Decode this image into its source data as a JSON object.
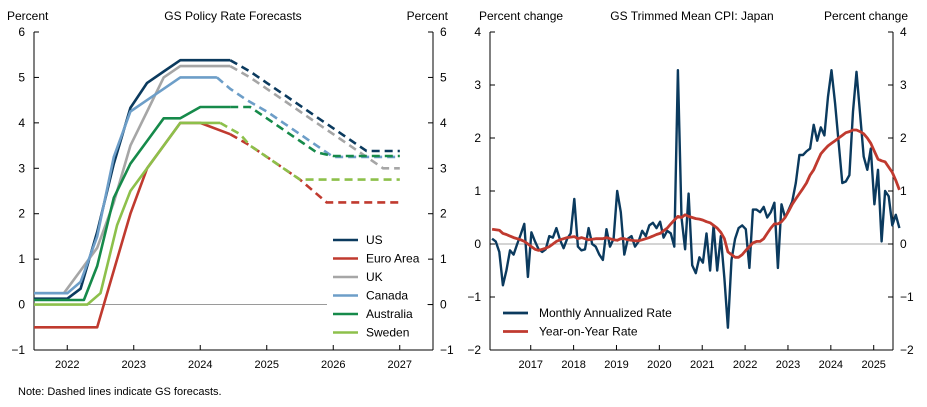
{
  "note": "Note: Dashed lines indicate GS forecasts.",
  "colors": {
    "US": "#0b3a5e",
    "Euro Area": "#c03a2f",
    "UK": "#a6a6a6",
    "Canada": "#6d9ec8",
    "Australia": "#168a4a",
    "Sweden": "#8dc04b",
    "zero_line": "#8c8c8c"
  },
  "chart_data": [
    {
      "type": "line",
      "title": "GS Policy Rate Forecasts",
      "ylabel_left": "Percent",
      "ylabel_right": "Percent",
      "xlabel": "",
      "xlim": [
        2021.5,
        2027.5
      ],
      "ylim": [
        -1,
        6
      ],
      "xticks": [
        2022,
        2023,
        2024,
        2025,
        2026,
        2027
      ],
      "xtick_labels": [
        "2022",
        "2023",
        "2024",
        "2025",
        "2026",
        "2027"
      ],
      "yticks": [
        -1,
        0,
        1,
        2,
        3,
        4,
        5,
        6
      ],
      "ytick_labels": [
        "−1",
        "0",
        "1",
        "2",
        "3",
        "4",
        "5",
        "6"
      ],
      "legend_position": "bottom-right",
      "series": [
        {
          "name": "US",
          "color_key": "US",
          "forecast_start": 2024.45,
          "x": [
            2021.5,
            2022.0,
            2022.2,
            2022.45,
            2022.7,
            2022.95,
            2023.2,
            2023.45,
            2023.7,
            2024.0,
            2024.45,
            2024.75,
            2025.0,
            2025.25,
            2025.5,
            2025.75,
            2026.0,
            2026.25,
            2026.5,
            2027.0
          ],
          "y": [
            0.13,
            0.13,
            0.35,
            1.6,
            3.1,
            4.33,
            4.88,
            5.13,
            5.38,
            5.38,
            5.38,
            5.13,
            4.88,
            4.63,
            4.38,
            4.13,
            3.88,
            3.63,
            3.38,
            3.38
          ]
        },
        {
          "name": "Euro Area",
          "color_key": "Euro Area",
          "forecast_start": 2024.45,
          "x": [
            2021.5,
            2022.45,
            2022.7,
            2022.95,
            2023.2,
            2023.45,
            2023.7,
            2024.0,
            2024.45,
            2024.75,
            2025.0,
            2025.5,
            2025.9,
            2026.5,
            2027.0
          ],
          "y": [
            -0.5,
            -0.5,
            0.75,
            2.0,
            3.0,
            3.5,
            4.0,
            4.0,
            3.75,
            3.5,
            3.25,
            2.75,
            2.25,
            2.25,
            2.25
          ]
        },
        {
          "name": "UK",
          "color_key": "UK",
          "forecast_start": 2024.45,
          "x": [
            2021.5,
            2021.95,
            2022.2,
            2022.45,
            2022.7,
            2022.95,
            2023.2,
            2023.45,
            2023.7,
            2024.0,
            2024.45,
            2024.75,
            2025.0,
            2025.25,
            2025.5,
            2025.75,
            2026.0,
            2026.25,
            2026.5,
            2026.75,
            2027.0
          ],
          "y": [
            0.25,
            0.25,
            0.75,
            1.25,
            2.25,
            3.5,
            4.25,
            5.0,
            5.25,
            5.25,
            5.25,
            5.0,
            4.75,
            4.5,
            4.25,
            4.0,
            3.75,
            3.5,
            3.25,
            3.0,
            3.0
          ]
        },
        {
          "name": "Canada",
          "color_key": "Canada",
          "forecast_start": 2024.25,
          "x": [
            2021.5,
            2022.0,
            2022.2,
            2022.45,
            2022.7,
            2022.95,
            2023.2,
            2023.45,
            2023.7,
            2024.0,
            2024.25,
            2024.45,
            2024.7,
            2025.0,
            2025.25,
            2025.5,
            2025.75,
            2026.0,
            2026.25,
            2026.5,
            2027.0
          ],
          "y": [
            0.25,
            0.25,
            0.5,
            1.5,
            3.25,
            4.25,
            4.5,
            4.75,
            5.0,
            5.0,
            5.0,
            4.75,
            4.5,
            4.25,
            4.0,
            3.75,
            3.5,
            3.25,
            3.25,
            3.25,
            3.25
          ]
        },
        {
          "name": "Australia",
          "color_key": "Australia",
          "forecast_start": 2024.45,
          "x": [
            2021.5,
            2022.25,
            2022.45,
            2022.7,
            2022.95,
            2023.2,
            2023.45,
            2023.7,
            2024.0,
            2024.45,
            2024.75,
            2025.0,
            2025.25,
            2025.5,
            2025.75,
            2026.0,
            2026.5,
            2027.0
          ],
          "y": [
            0.1,
            0.1,
            0.85,
            2.35,
            3.1,
            3.6,
            4.1,
            4.1,
            4.35,
            4.35,
            4.35,
            4.1,
            3.85,
            3.6,
            3.35,
            3.27,
            3.27,
            3.27
          ]
        },
        {
          "name": "Sweden",
          "color_key": "Sweden",
          "forecast_start": 2024.3,
          "x": [
            2021.5,
            2022.3,
            2022.5,
            2022.75,
            2022.95,
            2023.2,
            2023.45,
            2023.7,
            2024.0,
            2024.3,
            2024.6,
            2024.75,
            2025.0,
            2025.25,
            2025.5,
            2026.0,
            2026.5,
            2027.0
          ],
          "y": [
            0.0,
            0.0,
            0.25,
            1.75,
            2.5,
            3.0,
            3.5,
            4.0,
            4.0,
            4.0,
            3.75,
            3.5,
            3.25,
            3.0,
            2.75,
            2.75,
            2.75,
            2.75
          ]
        }
      ]
    },
    {
      "type": "line",
      "title": "GS Trimmed Mean CPI: Japan",
      "ylabel_left": "Percent change",
      "ylabel_right": "Percent change",
      "xlabel": "",
      "xlim": [
        2016.05,
        2025.45
      ],
      "ylim": [
        -2,
        4
      ],
      "xticks": [
        2017,
        2018,
        2019,
        2020,
        2021,
        2022,
        2023,
        2024,
        2025
      ],
      "xtick_labels": [
        "2017",
        "2018",
        "2019",
        "2020",
        "2021",
        "2022",
        "2023",
        "2024",
        "2025"
      ],
      "yticks": [
        -2,
        -1,
        0,
        1,
        2,
        3,
        4
      ],
      "ytick_labels": [
        "−2",
        "−1",
        "0",
        "1",
        "2",
        "3",
        "4"
      ],
      "legend_position": "bottom-left",
      "series": [
        {
          "name": "Monthly Annualized Rate",
          "color_key": "US",
          "x_start": 2016.1,
          "x_step": 0.08333,
          "y": [
            0.1,
            0.05,
            -0.15,
            -0.78,
            -0.5,
            -0.12,
            -0.2,
            0.0,
            0.18,
            0.38,
            -0.62,
            0.22,
            0.05,
            -0.1,
            -0.15,
            -0.1,
            0.15,
            0.12,
            0.3,
            0.08,
            -0.08,
            0.1,
            0.2,
            0.85,
            -0.05,
            -0.12,
            -0.1,
            0.3,
            0.0,
            -0.05,
            -0.2,
            -0.3,
            0.28,
            -0.05,
            0.1,
            1.0,
            0.6,
            -0.2,
            0.1,
            0.15,
            -0.05,
            0.05,
            0.25,
            0.15,
            0.35,
            0.4,
            0.3,
            0.42,
            0.12,
            0.25,
            0.2,
            -0.05,
            3.28,
            0.5,
            -0.1,
            0.95,
            -0.4,
            -0.55,
            -0.25,
            -0.35,
            0.2,
            -0.5,
            0.35,
            -0.5,
            0.15,
            -0.65,
            -1.58,
            -0.3,
            0.1,
            0.3,
            0.35,
            0.28,
            -0.45,
            0.65,
            0.65,
            0.6,
            0.7,
            0.5,
            0.6,
            0.78,
            -0.45,
            0.75,
            0.5,
            0.65,
            0.8,
            1.15,
            1.68,
            1.68,
            1.75,
            1.8,
            2.25,
            1.95,
            2.2,
            2.05,
            2.78,
            3.28,
            2.65,
            1.9,
            1.15,
            1.18,
            1.3,
            2.5,
            3.25,
            2.45,
            1.65,
            1.4,
            1.8,
            0.75,
            1.4,
            0.05,
            1.0,
            0.9,
            0.35,
            0.55,
            0.3
          ]
        },
        {
          "name": "Year-on-Year Rate",
          "color_key": "Euro Area",
          "x_start": 2016.1,
          "x_step": 0.08333,
          "y": [
            0.28,
            0.27,
            0.26,
            0.2,
            0.18,
            0.15,
            0.12,
            0.1,
            0.08,
            0.05,
            0.0,
            -0.05,
            -0.1,
            -0.12,
            -0.1,
            -0.08,
            -0.05,
            0.0,
            0.05,
            0.08,
            0.1,
            0.12,
            0.13,
            0.14,
            0.1,
            0.12,
            0.1,
            0.08,
            0.09,
            0.1,
            0.1,
            0.1,
            0.12,
            0.1,
            0.08,
            0.07,
            0.1,
            0.1,
            0.08,
            0.07,
            0.06,
            0.06,
            0.08,
            0.1,
            0.12,
            0.15,
            0.18,
            0.2,
            0.25,
            0.3,
            0.38,
            0.45,
            0.52,
            0.5,
            0.55,
            0.52,
            0.5,
            0.48,
            0.47,
            0.45,
            0.42,
            0.4,
            0.35,
            0.3,
            0.22,
            0.1,
            -0.15,
            -0.2,
            -0.25,
            -0.25,
            -0.2,
            -0.12,
            -0.05,
            0.02,
            0.05,
            0.05,
            0.1,
            0.2,
            0.3,
            0.38,
            0.38,
            0.42,
            0.5,
            0.62,
            0.75,
            0.85,
            0.95,
            1.05,
            1.15,
            1.3,
            1.4,
            1.55,
            1.7,
            1.78,
            1.85,
            1.9,
            1.95,
            2.0,
            2.05,
            2.1,
            2.12,
            2.15,
            2.15,
            2.12,
            2.08,
            2.0,
            1.9,
            1.75,
            1.6,
            1.57,
            1.55,
            1.45,
            1.35,
            1.2,
            1.02
          ]
        }
      ]
    }
  ]
}
